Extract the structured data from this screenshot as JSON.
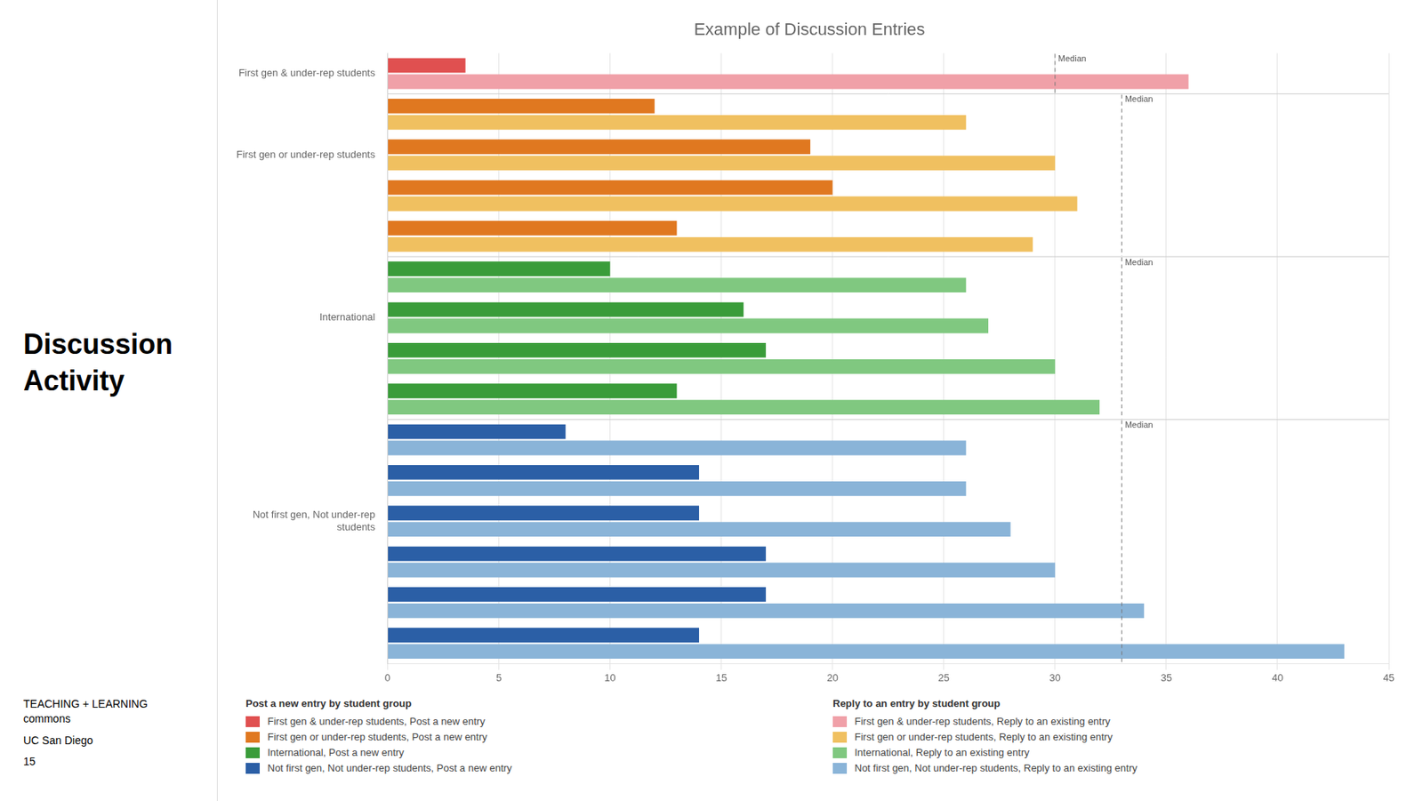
{
  "chart_data": {
    "type": "bar",
    "title": "Example of Discussion Entries",
    "orientation": "horizontal",
    "categories": [
      "First gen & under-rep students",
      null,
      "First gen or under-rep students",
      null,
      null,
      null,
      "International",
      null,
      null,
      null,
      null,
      "Not first gen, Not under-rep\nstudents",
      null,
      null,
      null
    ],
    "series": [
      {
        "name": "First gen & under-rep students, Post a new entry",
        "color": "#e05050",
        "values": [
          3.5,
          null,
          null,
          null,
          null,
          null,
          null,
          null,
          null,
          null,
          null,
          null,
          null,
          null,
          null
        ]
      },
      {
        "name": "First gen or under-rep students, Post a new entry",
        "color": "#e07820",
        "values": [
          null,
          12,
          19,
          20,
          13,
          null,
          null,
          null,
          null,
          null,
          null,
          null,
          null,
          null,
          null
        ]
      },
      {
        "name": "International, Post a new entry",
        "color": "#3a9c3a",
        "values": [
          null,
          null,
          null,
          null,
          null,
          10,
          16,
          17,
          13,
          null,
          null,
          null,
          null,
          null,
          null
        ]
      },
      {
        "name": "Not first gen, Not under-rep students, Post a new entry",
        "color": "#2b5fa6",
        "values": [
          null,
          null,
          null,
          null,
          null,
          null,
          null,
          null,
          null,
          8,
          14,
          14,
          17,
          17,
          14
        ]
      },
      {
        "name": "First gen & under-rep students, Reply to an existing entry",
        "color": "#f0a0a8",
        "values": [
          36,
          null,
          null,
          null,
          null,
          null,
          null,
          null,
          null,
          null,
          null,
          null,
          null,
          null,
          null
        ]
      },
      {
        "name": "First gen or under-rep students, Reply to an existing entry",
        "color": "#f0c060",
        "values": [
          null,
          26,
          30,
          31,
          29,
          null,
          null,
          null,
          null,
          null,
          null,
          null,
          null,
          null,
          null
        ]
      },
      {
        "name": "International, Reply to an existing entry",
        "color": "#80c880",
        "values": [
          null,
          null,
          null,
          null,
          null,
          26,
          27,
          30,
          32,
          null,
          null,
          null,
          null,
          null,
          null
        ]
      },
      {
        "name": "Not first gen, Not under-rep students, Reply to an existing entry",
        "color": "#8ab4d8",
        "values": [
          null,
          null,
          null,
          null,
          null,
          null,
          null,
          null,
          null,
          26,
          26,
          28,
          30,
          34,
          43
        ]
      }
    ],
    "xlim": [
      0,
      45
    ],
    "xticks": [
      0,
      5,
      10,
      15,
      20,
      25,
      30,
      35,
      40,
      45
    ],
    "grid": true,
    "legend": "bottom",
    "legend_titles": [
      "Post a new entry by student group",
      "Reply to an entry by student group"
    ],
    "annotations": [
      {
        "text": "Median",
        "x": 30,
        "series": [
          "First gen & under-rep students, Post a new entry",
          "First gen & under-rep students, Reply to an existing entry"
        ]
      },
      {
        "text": "Median",
        "x": 33,
        "series": [
          "First gen or under-rep students, Post a new entry",
          "First gen or under-rep students, Reply to an existing entry"
        ]
      },
      {
        "text": "Median",
        "x": 33,
        "series": [
          "International, Post a new entry",
          "International, Reply to an existing entry"
        ]
      },
      {
        "text": "Median",
        "x": 33,
        "series": [
          "Not first gen, Not under-rep students, Post a new entry",
          "Not first gen, Not under-rep students, Reply to an existing entry"
        ]
      },
      {
        "text": "Discussion\nActivity"
      },
      {
        "text": "TEACHING + LEARNING\ncommons"
      },
      {
        "text": "UC San Diego"
      },
      {
        "text": "15"
      }
    ]
  }
}
